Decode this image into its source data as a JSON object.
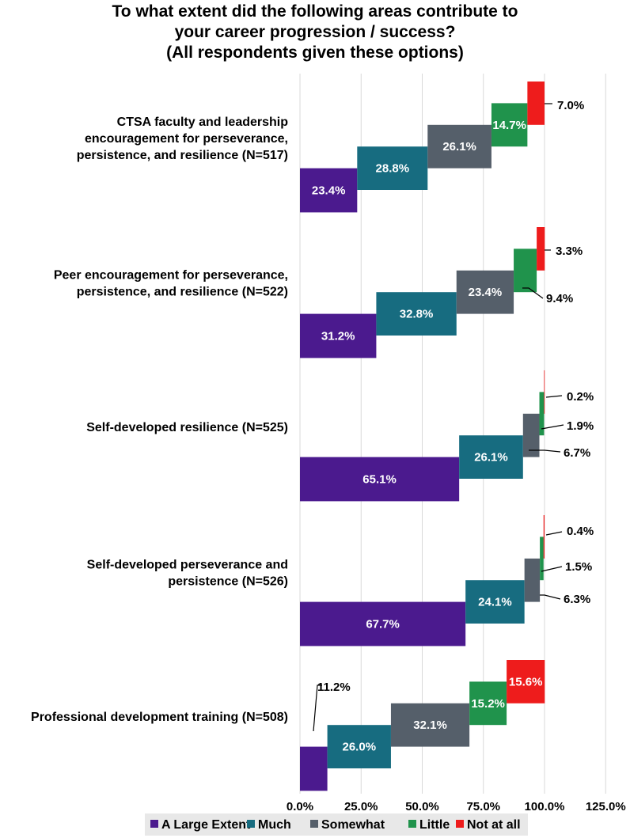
{
  "chart_data": {
    "type": "bar",
    "subtype": "waterfall-stacked-horizontal",
    "title": [
      "To what extent did the following areas contribute to",
      "your career progression / success?",
      "(All respondents given these options)"
    ],
    "xlim": [
      0,
      125
    ],
    "xticks": [
      0,
      25,
      50,
      75,
      100,
      125
    ],
    "xtick_labels": [
      "0.0%",
      "25.0%",
      "50.0%",
      "75.0%",
      "100.0%",
      "125.0%"
    ],
    "grid": true,
    "legend_position": "bottom",
    "categories": [
      {
        "label": [
          "CTSA faculty and leadership",
          "encouragement for perseverance,",
          "persistence, and resilience (N=517)"
        ]
      },
      {
        "label": [
          "Peer encouragement for perseverance,",
          "persistence, and resilience (N=522)"
        ]
      },
      {
        "label": [
          "Self-developed resilience (N=525)"
        ]
      },
      {
        "label": [
          "Self-developed perseverance and",
          "persistence (N=526)"
        ]
      },
      {
        "label": [
          "Professional development training (N=508)"
        ]
      }
    ],
    "series": [
      {
        "name": "A Large Extent",
        "color": "#4b1a8e",
        "values": [
          23.4,
          31.2,
          65.1,
          67.7,
          11.2
        ],
        "labels": [
          "23.4%",
          "31.2%",
          "65.1%",
          "67.7%",
          "11.2%"
        ]
      },
      {
        "name": "Much",
        "color": "#176c80",
        "values": [
          28.8,
          32.8,
          26.1,
          24.1,
          26.0
        ],
        "labels": [
          "28.8%",
          "32.8%",
          "26.1%",
          "24.1%",
          "26.0%"
        ]
      },
      {
        "name": "Somewhat",
        "color": "#555f6a",
        "values": [
          26.1,
          23.4,
          6.7,
          6.3,
          32.1
        ],
        "labels": [
          "26.1%",
          "23.4%",
          "6.7%",
          "6.3%",
          "32.1%"
        ]
      },
      {
        "name": "Little",
        "color": "#20934c",
        "values": [
          14.7,
          9.4,
          1.9,
          1.5,
          15.2
        ],
        "labels": [
          "14.7%",
          "9.4%",
          "1.9%",
          "1.5%",
          "15.2%"
        ]
      },
      {
        "name": "Not at all",
        "color": "#ee1c1c",
        "values": [
          7.0,
          3.3,
          0.2,
          0.4,
          15.6
        ],
        "labels": [
          "7.0%",
          "3.3%",
          "0.2%",
          "0.4%",
          "15.6%"
        ]
      }
    ]
  }
}
